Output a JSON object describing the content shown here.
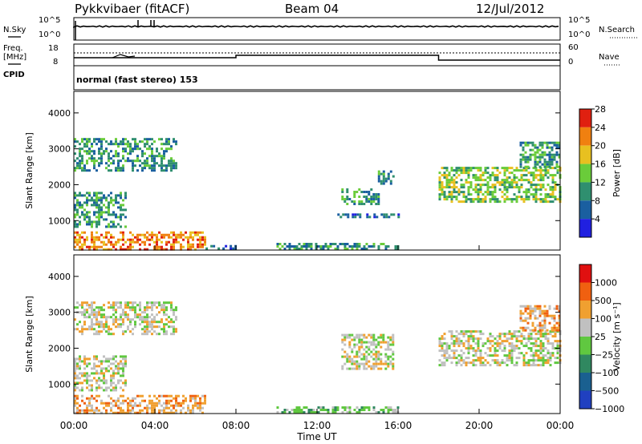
{
  "header": {
    "station": "Pykkvibaer (fitACF)",
    "beam": "Beam 04",
    "date": "12/Jul/2012"
  },
  "top_panels": {
    "nsky_label": "N.Sky",
    "nsky_ticks": [
      "10^5",
      "10^0"
    ],
    "nsearch_label": "N.Search",
    "nsearch_ticks": [
      "10^5",
      "10^0"
    ],
    "freq_label_1": "Freq.",
    "freq_label_2": "[MHz]",
    "freq_ticks": [
      "18",
      "8"
    ],
    "nave_label": "Nave",
    "nave_ticks": [
      "60",
      "0"
    ],
    "cpid_label": "CPID",
    "cpid_text": "normal (fast stereo) 153"
  },
  "chart_data": [
    {
      "type": "heatmap",
      "name": "power-panel",
      "x_ticks": [
        "00:00",
        "04:00",
        "08:00",
        "12:00",
        "16:00",
        "20:00",
        "00:00"
      ],
      "xlim_hours": [
        0,
        24
      ],
      "ylabel": "Slant Range [km]",
      "y_ticks": [
        1000,
        2000,
        3000,
        4000
      ],
      "ylim": [
        180,
        4600
      ],
      "colorbar": {
        "label": "Power [dB]",
        "ticks": [
          "4",
          "8",
          "12",
          "16",
          "20",
          "24",
          "28"
        ],
        "colors": [
          "#2020e0",
          "#1a5fa0",
          "#2f8f6f",
          "#6acc3a",
          "#e8c020",
          "#f08010",
          "#e02010"
        ]
      },
      "regions": [
        {
          "t": [
            0.0,
            5.0
          ],
          "r": [
            2400,
            3300
          ],
          "level": 2
        },
        {
          "t": [
            0.0,
            2.5
          ],
          "r": [
            800,
            1800
          ],
          "level": 2
        },
        {
          "t": [
            0.0,
            6.5
          ],
          "r": [
            200,
            700
          ],
          "level": 5
        },
        {
          "t": [
            6.5,
            8.0
          ],
          "r": [
            200,
            320
          ],
          "level": 1
        },
        {
          "t": [
            10.0,
            16.0
          ],
          "r": [
            200,
            380
          ],
          "level": 2
        },
        {
          "t": [
            13.2,
            15.0
          ],
          "r": [
            1450,
            1900
          ],
          "level": 2
        },
        {
          "t": [
            15.0,
            15.8
          ],
          "r": [
            2000,
            2400
          ],
          "level": 2
        },
        {
          "t": [
            13.0,
            16.0
          ],
          "r": [
            1100,
            1200
          ],
          "level": 1
        },
        {
          "t": [
            18.0,
            24.0
          ],
          "r": [
            1500,
            2500
          ],
          "level": 3
        },
        {
          "t": [
            22.0,
            24.0
          ],
          "r": [
            2500,
            3200
          ],
          "level": 2
        }
      ]
    },
    {
      "type": "heatmap",
      "name": "velocity-panel",
      "x_ticks": [
        "00:00",
        "04:00",
        "08:00",
        "12:00",
        "16:00",
        "20:00",
        "00:00"
      ],
      "xlabel": "Time UT",
      "xlim_hours": [
        0,
        24
      ],
      "ylabel": "Slant Range [km]",
      "y_ticks": [
        1000,
        2000,
        3000,
        4000
      ],
      "ylim": [
        180,
        4600
      ],
      "colorbar": {
        "label": "Velocity [m s⁻¹]",
        "ticks": [
          "1000",
          "500",
          "100",
          "25",
          "−25",
          "−100",
          "−500",
          "−1000"
        ],
        "colors": [
          "#2040c0",
          "#1a6090",
          "#308860",
          "#60c840",
          "#c0c0c0",
          "#f0a030",
          "#f06010",
          "#e01010"
        ]
      },
      "regions": [
        {
          "t": [
            0.0,
            5.0
          ],
          "r": [
            2400,
            3300
          ],
          "level": 4
        },
        {
          "t": [
            0.0,
            2.5
          ],
          "r": [
            800,
            1800
          ],
          "level": 4
        },
        {
          "t": [
            0.0,
            6.5
          ],
          "r": [
            200,
            700
          ],
          "level": 5
        },
        {
          "t": [
            10.0,
            16.0
          ],
          "r": [
            200,
            380
          ],
          "level": 3
        },
        {
          "t": [
            13.2,
            15.8
          ],
          "r": [
            1450,
            2400
          ],
          "level": 4
        },
        {
          "t": [
            18.0,
            24.0
          ],
          "r": [
            1500,
            2500
          ],
          "level": 4
        },
        {
          "t": [
            22.0,
            24.0
          ],
          "r": [
            2500,
            3200
          ],
          "level": 5
        }
      ]
    }
  ]
}
